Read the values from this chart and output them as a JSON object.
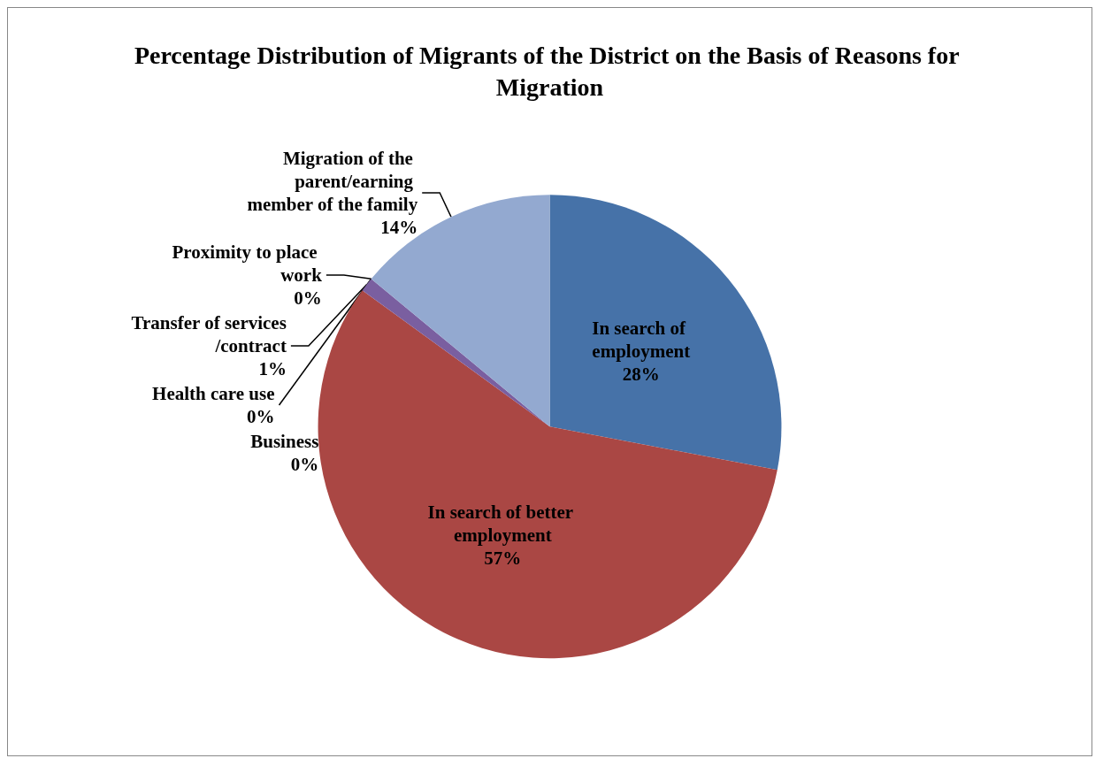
{
  "chart_data": {
    "type": "pie",
    "title": "Percentage Distribution of Migrants of the District on the Basis of Reasons for Migration",
    "categories": [
      "In search of employment",
      "In search of better employment",
      "Business",
      "Transfer of services/contract",
      "Health care use",
      "Proximity to place work",
      "Migration of the parent/earning member of the family"
    ],
    "values": [
      28,
      57,
      0,
      1,
      0,
      0,
      14
    ],
    "value_labels": [
      "28%",
      "57%",
      "0%",
      "1%",
      "0%",
      "0%",
      "14%"
    ],
    "colors": [
      "#4672a8",
      "#aa4744",
      "#8aa64a",
      "#7a5fa0",
      "#45a5c0",
      "#f59d4d",
      "#93a9d0"
    ],
    "legend": false
  }
}
